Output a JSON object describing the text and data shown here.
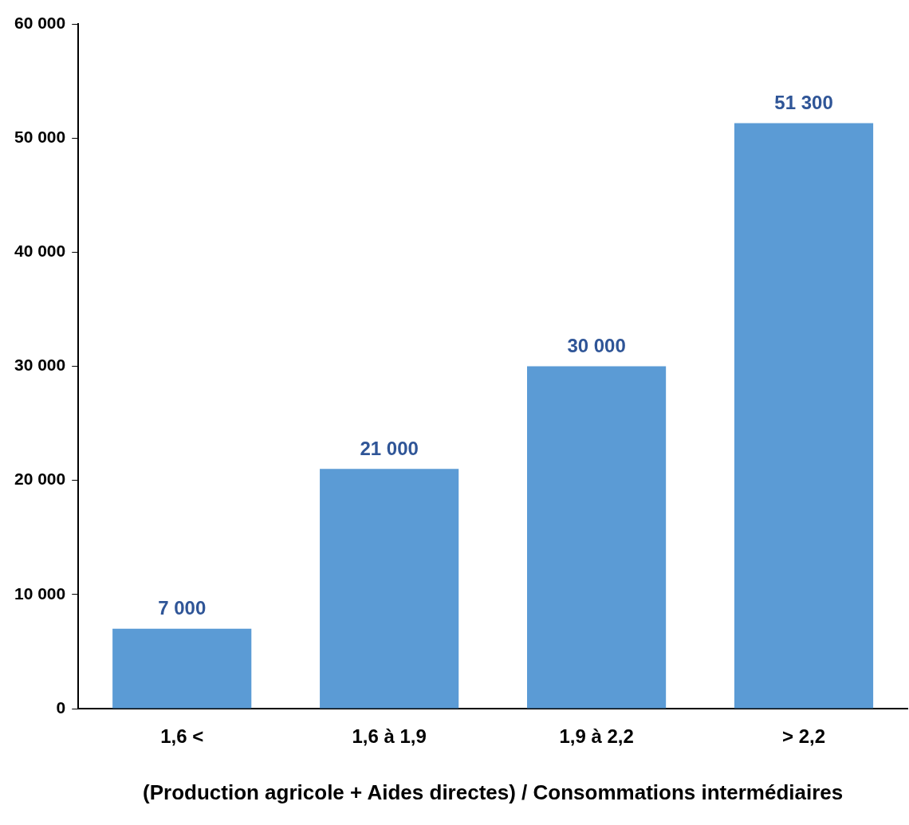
{
  "chart_data": {
    "type": "bar",
    "xlabel": "(Production agricole + Aides directes) / Consommations intermédiaires",
    "categories": [
      "1,6 <",
      "1,6 à 1,9",
      "1,9 à 2,2",
      "> 2,2"
    ],
    "values": [
      7000,
      21000,
      30000,
      51300
    ],
    "value_labels": [
      "7 000",
      "21 000",
      "30 000",
      "51 300"
    ],
    "color": "#5b9bd5",
    "ylim": [
      0,
      60000
    ],
    "yticks": [
      {
        "value": 0,
        "label": "0"
      },
      {
        "value": 10000,
        "label": "10 000"
      },
      {
        "value": 20000,
        "label": "20 000"
      },
      {
        "value": 30000,
        "label": "30 000"
      },
      {
        "value": 40000,
        "label": "40 000"
      },
      {
        "value": 50000,
        "label": "50 000"
      },
      {
        "value": 60000,
        "label": "60 000"
      }
    ],
    "grid": false,
    "legend": false
  }
}
